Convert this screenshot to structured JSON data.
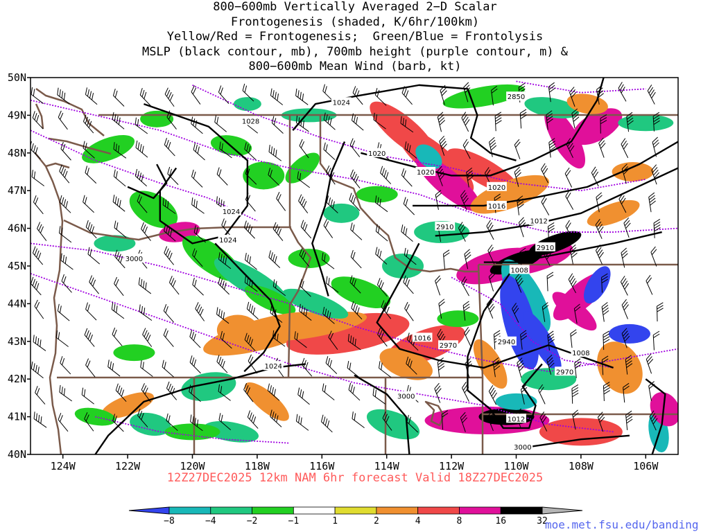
{
  "title_lines": [
    "800−600mb Vertically Averaged 2−D Scalar",
    "Frontogenesis (shaded, K/6hr/100km)",
    "Yellow/Red = Frontogenesis;  Green/Blue = Frontolysis",
    "MSLP (black contour, mb), 700mb height (purple contour, m) &",
    "800−600mb Mean Wind (barb, kt)"
  ],
  "valid_text": "12Z27DEC2025 12km NAM 6hr forecast Valid 18Z27DEC2025",
  "credit": "moe.met.fsu.edu/banding",
  "axes": {
    "lon_range": [
      -125,
      -105
    ],
    "lat_range": [
      40,
      50
    ],
    "x_ticks": [
      {
        "value": -124,
        "label": "124W"
      },
      {
        "value": -122,
        "label": "122W"
      },
      {
        "value": -120,
        "label": "120W"
      },
      {
        "value": -118,
        "label": "118W"
      },
      {
        "value": -116,
        "label": "116W"
      },
      {
        "value": -114,
        "label": "114W"
      },
      {
        "value": -112,
        "label": "112W"
      },
      {
        "value": -110,
        "label": "110W"
      },
      {
        "value": -108,
        "label": "108W"
      },
      {
        "value": -106,
        "label": "106W"
      }
    ],
    "y_ticks": [
      {
        "value": 50,
        "label": "50N"
      },
      {
        "value": 49,
        "label": "49N"
      },
      {
        "value": 48,
        "label": "48N"
      },
      {
        "value": 47,
        "label": "47N"
      },
      {
        "value": 46,
        "label": "46N"
      },
      {
        "value": 45,
        "label": "45N"
      },
      {
        "value": 44,
        "label": "44N"
      },
      {
        "value": 43,
        "label": "43N"
      },
      {
        "value": 42,
        "label": "42N"
      },
      {
        "value": 41,
        "label": "41N"
      },
      {
        "value": 40,
        "label": "40N"
      }
    ]
  },
  "colorbar": {
    "labels": [
      "−8",
      "−4",
      "−2",
      "−1",
      "1",
      "2",
      "4",
      "8",
      "16",
      "32"
    ],
    "colors": [
      "#3344ee",
      "#18b8b8",
      "#20c880",
      "#22d022",
      "#ffffff",
      "#e0dc30",
      "#f09030",
      "#f04848",
      "#e0109a",
      "#000000",
      "#b4b4b4"
    ]
  },
  "mslp_labels": [
    {
      "text": "1028",
      "lon": -118.2,
      "lat": 48.85
    },
    {
      "text": "1024",
      "lon": -115.4,
      "lat": 49.35
    },
    {
      "text": "1020",
      "lon": -114.3,
      "lat": 48.0
    },
    {
      "text": "1024",
      "lon": -118.8,
      "lat": 46.45
    },
    {
      "text": "1024",
      "lon": -118.9,
      "lat": 45.7
    },
    {
      "text": "1024",
      "lon": -117.5,
      "lat": 42.35
    },
    {
      "text": "1020",
      "lon": -112.8,
      "lat": 47.5
    },
    {
      "text": "1020",
      "lon": -110.6,
      "lat": 47.1
    },
    {
      "text": "1016",
      "lon": -110.6,
      "lat": 46.6
    },
    {
      "text": "1012",
      "lon": -109.3,
      "lat": 46.2
    },
    {
      "text": "1008",
      "lon": -109.9,
      "lat": 44.9
    },
    {
      "text": "1016",
      "lon": -112.9,
      "lat": 43.1
    },
    {
      "text": "1008",
      "lon": -108.0,
      "lat": 42.7
    },
    {
      "text": "1012",
      "lon": -110.0,
      "lat": 40.95
    }
  ],
  "height_labels": [
    {
      "text": "2850",
      "lon": -110.0,
      "lat": 49.5
    },
    {
      "text": "2910",
      "lon": -112.2,
      "lat": 46.05
    },
    {
      "text": "2910",
      "lon": -109.1,
      "lat": 45.5
    },
    {
      "text": "3000",
      "lon": -121.8,
      "lat": 45.2
    },
    {
      "text": "2970",
      "lon": -112.1,
      "lat": 42.9
    },
    {
      "text": "2940",
      "lon": -110.3,
      "lat": 43.0
    },
    {
      "text": "2970",
      "lon": -108.5,
      "lat": 42.2
    },
    {
      "text": "3000",
      "lon": -113.4,
      "lat": 41.55
    },
    {
      "text": "3000",
      "lon": -109.8,
      "lat": 40.2
    }
  ],
  "colors": {
    "mslp": "#000000",
    "height": "#a000e0",
    "border": "#7a5a4a",
    "barb": "#000000"
  }
}
